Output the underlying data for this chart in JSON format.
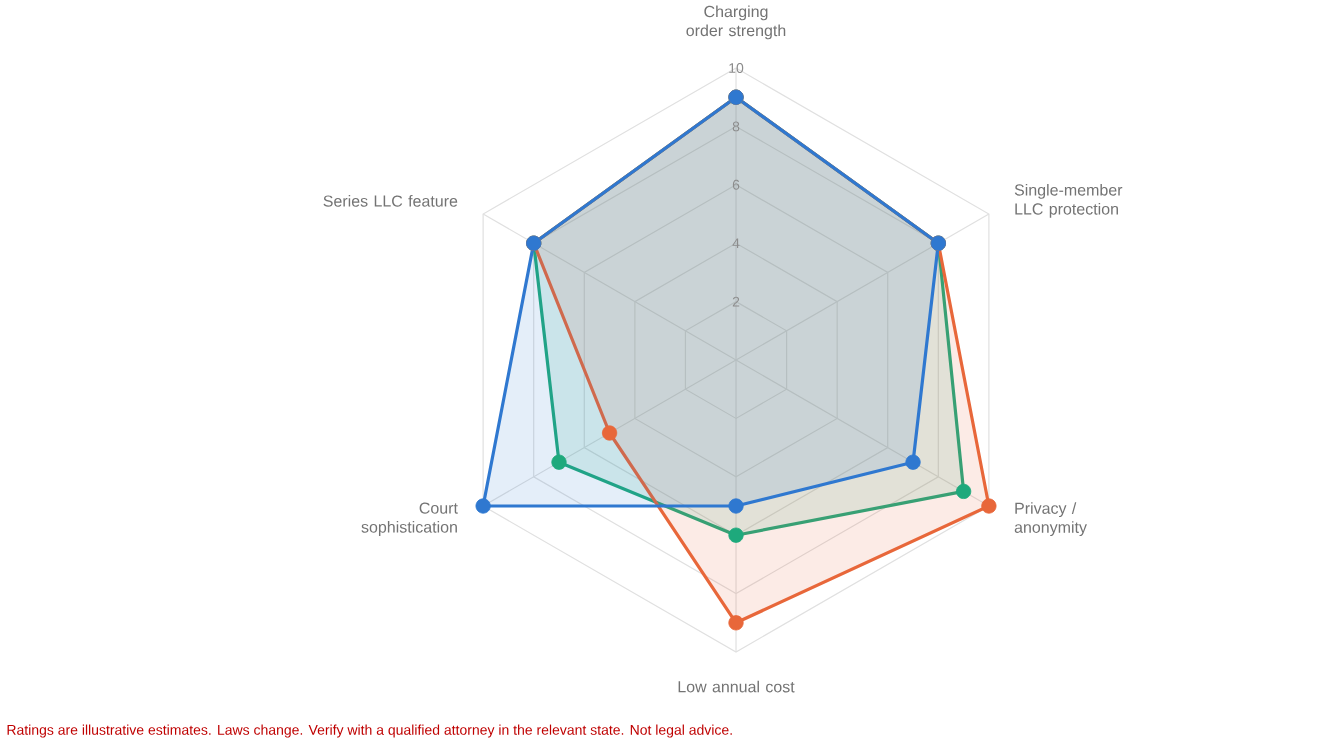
{
  "chart_data": {
    "type": "radar",
    "categories": [
      "Charging order strength",
      "Single-member LLC protection",
      "Privacy / anonymity",
      "Low annual cost",
      "Court sophistication",
      "Series LLC feature"
    ],
    "series": [
      {
        "color": "#2f78d0",
        "values": [
          9,
          8,
          7,
          5,
          10,
          8
        ]
      },
      {
        "color": "#e8673a",
        "values": [
          9,
          8,
          10,
          9,
          5,
          8
        ]
      },
      {
        "color": "#1ea97c",
        "values": [
          9,
          8,
          9,
          6,
          7,
          8
        ]
      }
    ],
    "ylim": [
      0,
      10
    ],
    "yticks": [
      2,
      4,
      6,
      8,
      10
    ],
    "grid": true,
    "marker": "circle",
    "annotations": [
      "Ratings are illustrative estimates. Laws change. Verify with a qualified attorney in the relevant state. Not legal advice."
    ]
  }
}
